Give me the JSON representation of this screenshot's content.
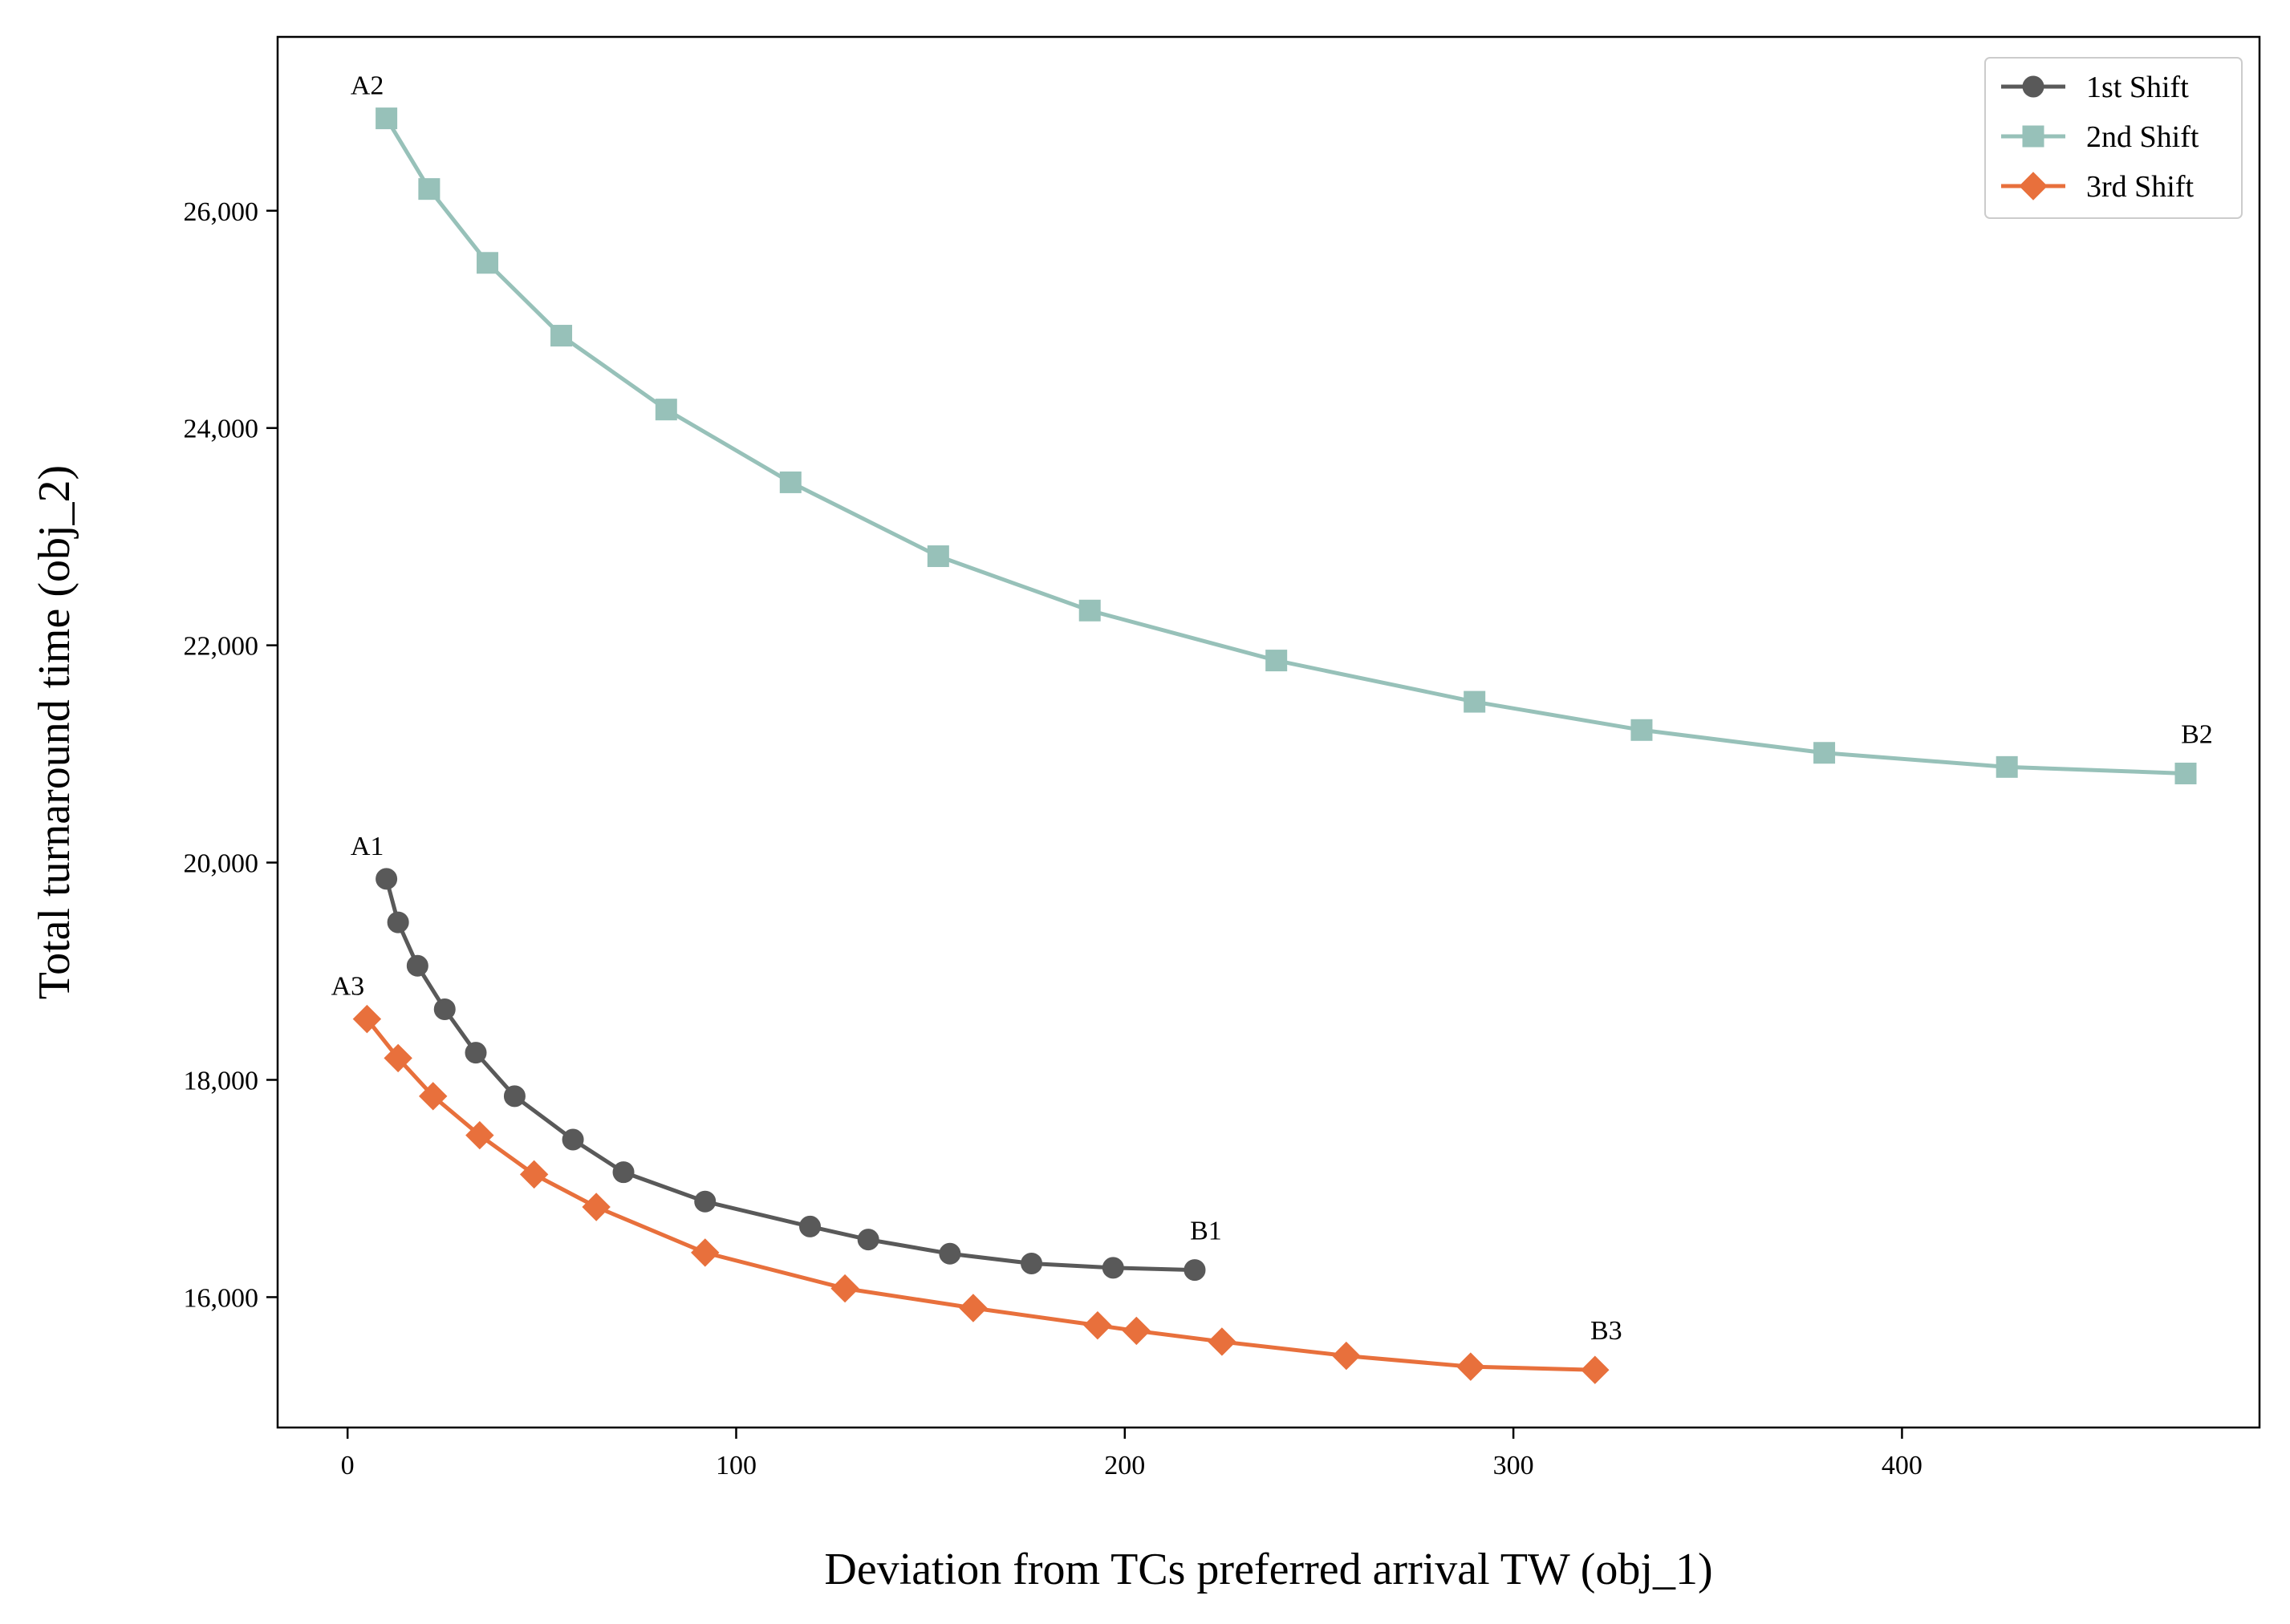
{
  "chart_data": {
    "type": "line",
    "xlabel": "Deviation from TCs preferred arrival TW (obj_1)",
    "ylabel": "Total turnaround time (obj_2)",
    "xlim": [
      -18,
      492
    ],
    "ylim": [
      14800,
      27600
    ],
    "x_ticks": [
      0,
      100,
      200,
      300,
      400
    ],
    "x_tick_labels": [
      "0",
      "100",
      "200",
      "300",
      "400"
    ],
    "y_ticks": [
      16000,
      18000,
      20000,
      22000,
      24000,
      26000
    ],
    "y_tick_labels": [
      "16,000",
      "18,000",
      "20,000",
      "22,000",
      "24,000",
      "26,000"
    ],
    "grid": false,
    "legend_position": "top-right",
    "series": [
      {
        "name": "1st Shift",
        "color": "#595959",
        "marker": "circle",
        "start_label": "A1",
        "end_label": "B1",
        "x": [
          10,
          13,
          18,
          25,
          33,
          43,
          58,
          71,
          92,
          119,
          134,
          155,
          176,
          197,
          218
        ],
        "y": [
          19850,
          19450,
          19050,
          18650,
          18250,
          17850,
          17450,
          17150,
          16880,
          16650,
          16530,
          16400,
          16310,
          16270,
          16250
        ]
      },
      {
        "name": "2nd Shift",
        "color": "#97C1B9",
        "marker": "square",
        "start_label": "A2",
        "end_label": "B2",
        "x": [
          10,
          21,
          36,
          55,
          82,
          114,
          152,
          191,
          239,
          290,
          333,
          380,
          427,
          473
        ],
        "y": [
          26850,
          26200,
          25520,
          24850,
          24170,
          23500,
          22820,
          22320,
          21860,
          21480,
          21220,
          21010,
          20880,
          20820
        ]
      },
      {
        "name": "3rd Shift",
        "color": "#E8703C",
        "marker": "diamond",
        "start_label": "A3",
        "end_label": "B3",
        "x": [
          5,
          13,
          22,
          34,
          48,
          64,
          92,
          128,
          161,
          193,
          203,
          225,
          257,
          289,
          321
        ],
        "y": [
          18560,
          18200,
          17850,
          17490,
          17130,
          16830,
          16410,
          16080,
          15900,
          15740,
          15690,
          15590,
          15460,
          15360,
          15330
        ]
      }
    ]
  }
}
